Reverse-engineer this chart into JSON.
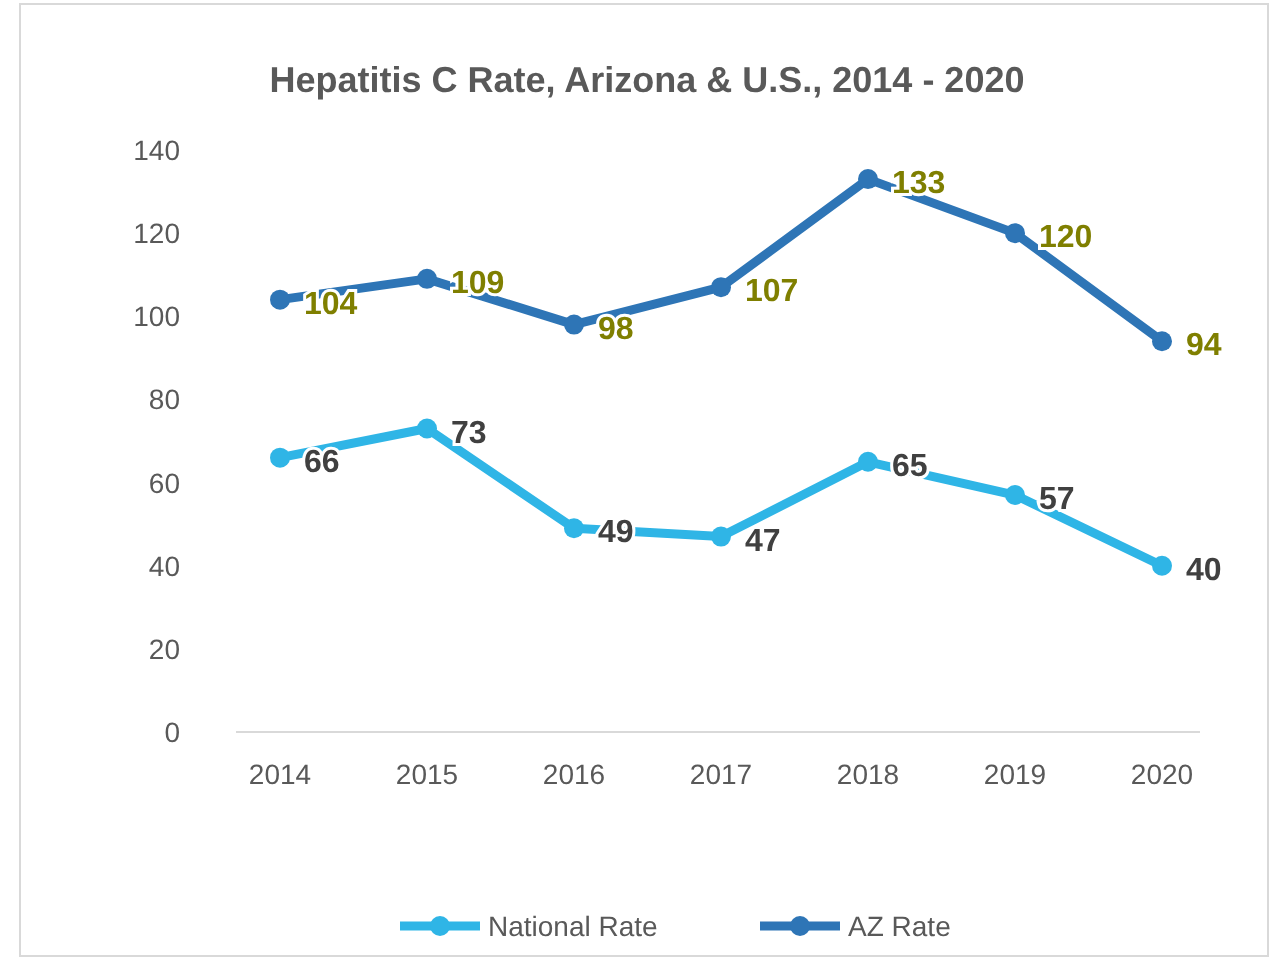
{
  "chart_data": {
    "type": "line",
    "title": "Hepatitis C Rate, Arizona & U.S., 2014 - 2020",
    "categories": [
      "2014",
      "2015",
      "2016",
      "2017",
      "2018",
      "2019",
      "2020"
    ],
    "series": [
      {
        "name": "National Rate",
        "color": "#2fb5e6",
        "values": [
          66,
          73,
          49,
          47,
          65,
          57,
          40
        ]
      },
      {
        "name": "AZ Rate",
        "color": "#2e75b6",
        "values": [
          104,
          109,
          98,
          107,
          133,
          120,
          94
        ]
      }
    ],
    "ylim": [
      0,
      140
    ],
    "yticks": [
      0,
      20,
      40,
      60,
      80,
      100,
      120,
      140
    ],
    "data_labels": true,
    "legend": "bottom",
    "marker": "circle",
    "line_style": "solid"
  }
}
